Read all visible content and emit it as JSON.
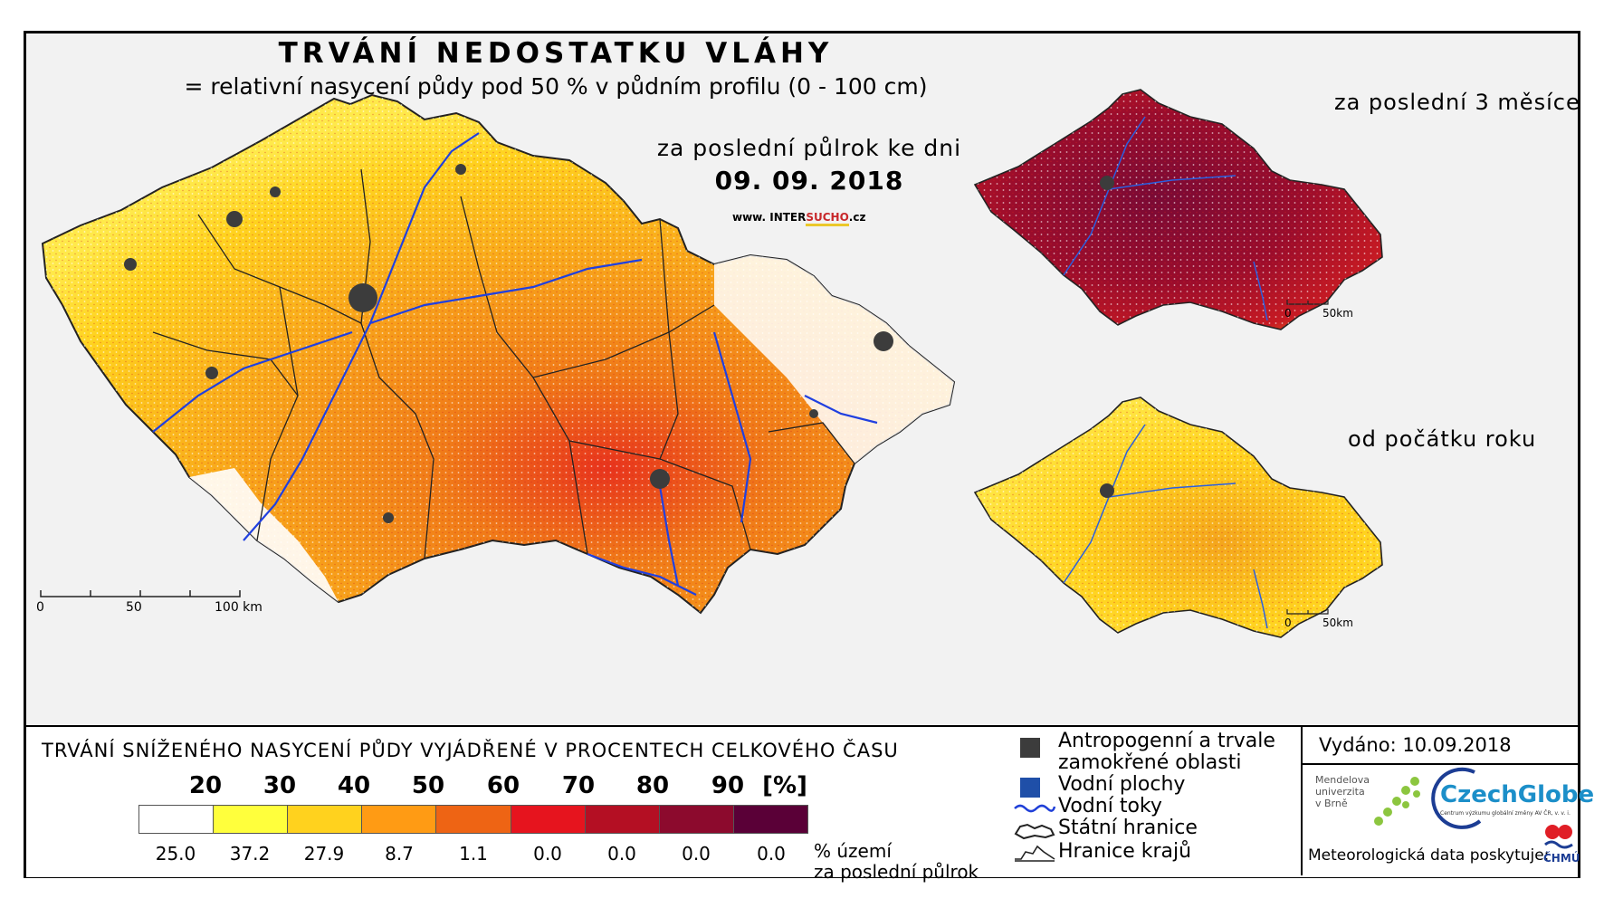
{
  "title": "TRVÁNÍ NEDOSTATKU VLÁHY",
  "subtitle": "= relativní nasycení půdy pod 50 % v půdním profilu (0 - 100 cm)",
  "main_map": {
    "period_label": "za poslední půlrok ke dni",
    "date": "09. 09. 2018",
    "scale": [
      "0",
      "50",
      "100 km"
    ]
  },
  "website": {
    "prefix": "www. INTER",
    "accent": "SUCHO",
    "suffix": ".cz"
  },
  "inset_3_months": {
    "label": "za poslední 3 měsíce",
    "scale": [
      "0",
      "50km"
    ]
  },
  "inset_year": {
    "label": "od počátku roku",
    "scale": [
      "0",
      "50km"
    ]
  },
  "legend": {
    "title": "TRVÁNÍ SNÍŽENÉHO NASYCENÍ PŮDY VYJÁDŘENÉ V PROCENTECH CELKOVÉHO ČASU",
    "thresholds": [
      "20",
      "30",
      "40",
      "50",
      "60",
      "70",
      "80",
      "90",
      "[%]"
    ],
    "colors": [
      "#ffffff",
      "#ffff3c",
      "#ffd21e",
      "#ff9b14",
      "#ee6414",
      "#e6141e",
      "#b40f23",
      "#8c0a2d",
      "#5a0037"
    ],
    "percent_territory": [
      "25.0",
      "37.2",
      "27.9",
      "8.7",
      "1.1",
      "0.0",
      "0.0",
      "0.0",
      "0.0"
    ],
    "unit_label_line1": "% území",
    "unit_label_line2": "za poslední půlrok"
  },
  "map_legend": {
    "anthropogenic_line1": "Antropogenní a trvale",
    "anthropogenic_line2": "zamokřené oblasti",
    "water_bodies": "Vodní plochy",
    "rivers": "Vodní toky",
    "state_border": "Státní hranice",
    "region_border": "Hranice krajů",
    "colors": {
      "anthropogenic": "#3c3c3c",
      "water_bodies": "#1f4fa8",
      "rivers": "#1f3fd8"
    }
  },
  "issued": "Vydáno: 10.09.2018",
  "logos": {
    "mendel_line1": "Mendelova",
    "mendel_line2": "univerzita",
    "mendel_line3": "v Brně",
    "czechglobe": "CzechGlobe",
    "czechglobe_sub": "Centrum výzkumu globální změny AV ČR, v. v. i.",
    "chmu": "ČHMÚ"
  },
  "meteo_provider": "Meteorologická data poskytuje:"
}
